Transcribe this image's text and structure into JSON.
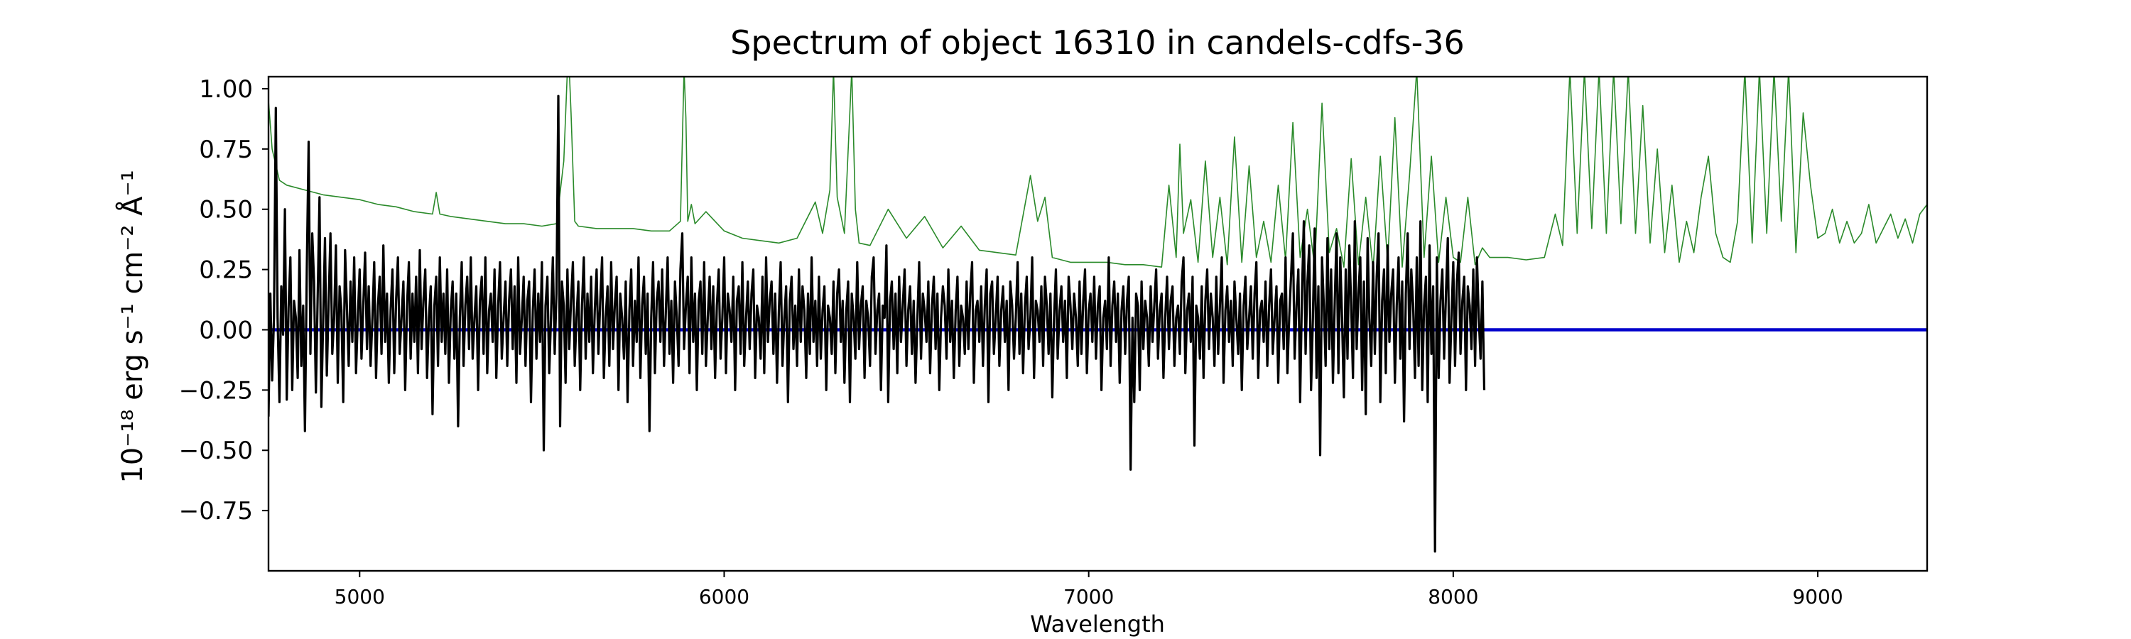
{
  "chart_data": {
    "type": "line",
    "title": "Spectrum of object 16310 in candels-cdfs-36",
    "xlabel": "Wavelength",
    "ylabel": "10⁻¹⁸ erg s⁻¹ cm⁻² Å⁻¹",
    "xlim": [
      4750,
      9300
    ],
    "ylim": [
      -1.0,
      1.05
    ],
    "x_ticks": [
      5000,
      6000,
      7000,
      8000,
      9000
    ],
    "y_ticks": [
      -0.75,
      -0.5,
      -0.25,
      0.0,
      0.25,
      0.5,
      0.75,
      1.0
    ],
    "x_tick_labels": [
      "5000",
      "6000",
      "7000",
      "8000",
      "9000"
    ],
    "y_tick_labels": [
      "−0.75",
      "−0.50",
      "−0.25",
      "0.00",
      "0.25",
      "0.50",
      "0.75",
      "1.00"
    ],
    "grid": false,
    "series": [
      {
        "role": "error",
        "color": "#2a8a2a",
        "x": [
          4750,
          4760,
          4780,
          4800,
          4850,
          4900,
          4950,
          5000,
          5050,
          5100,
          5150,
          5200,
          5210,
          5220,
          5250,
          5300,
          5350,
          5400,
          5450,
          5500,
          5540,
          5560,
          5570,
          5575,
          5580,
          5590,
          5600,
          5650,
          5700,
          5750,
          5800,
          5850,
          5880,
          5890,
          5895,
          5900,
          5910,
          5920,
          5950,
          6000,
          6050,
          6100,
          6150,
          6200,
          6250,
          6270,
          6290,
          6300,
          6310,
          6330,
          6350,
          6360,
          6370,
          6400,
          6450,
          6500,
          6550,
          6600,
          6650,
          6700,
          6750,
          6800,
          6840,
          6860,
          6880,
          6900,
          6950,
          7000,
          7050,
          7100,
          7150,
          7200,
          7220,
          7240,
          7250,
          7260,
          7280,
          7300,
          7320,
          7340,
          7360,
          7380,
          7400,
          7420,
          7440,
          7460,
          7480,
          7500,
          7520,
          7540,
          7560,
          7580,
          7600,
          7620,
          7640,
          7660,
          7680,
          7700,
          7720,
          7740,
          7760,
          7780,
          7800,
          7820,
          7840,
          7860,
          7880,
          7900,
          7920,
          7940,
          7960,
          7980,
          8000,
          8020,
          8040,
          8060,
          8080,
          8100,
          8150,
          8200,
          8250,
          8280,
          8300,
          8320,
          8340,
          8360,
          8380,
          8400,
          8420,
          8440,
          8460,
          8480,
          8500,
          8520,
          8540,
          8560,
          8580,
          8600,
          8620,
          8640,
          8660,
          8680,
          8700,
          8720,
          8740,
          8760,
          8780,
          8800,
          8820,
          8840,
          8860,
          8880,
          8900,
          8920,
          8940,
          8960,
          8980,
          9000,
          9020,
          9040,
          9060,
          9080,
          9100,
          9120,
          9140,
          9160,
          9180,
          9200,
          9220,
          9240,
          9260,
          9280,
          9300
        ],
        "values": [
          0.95,
          0.75,
          0.62,
          0.6,
          0.58,
          0.56,
          0.55,
          0.54,
          0.52,
          0.51,
          0.49,
          0.48,
          0.57,
          0.48,
          0.47,
          0.46,
          0.45,
          0.44,
          0.44,
          0.43,
          0.44,
          0.7,
          1.08,
          1.08,
          0.9,
          0.45,
          0.43,
          0.42,
          0.42,
          0.42,
          0.41,
          0.41,
          0.45,
          1.08,
          0.88,
          0.45,
          0.52,
          0.44,
          0.49,
          0.41,
          0.38,
          0.37,
          0.36,
          0.38,
          0.53,
          0.4,
          0.58,
          1.08,
          0.55,
          0.4,
          1.08,
          0.5,
          0.36,
          0.35,
          0.5,
          0.38,
          0.47,
          0.34,
          0.43,
          0.33,
          0.32,
          0.31,
          0.64,
          0.45,
          0.55,
          0.3,
          0.28,
          0.28,
          0.28,
          0.27,
          0.27,
          0.26,
          0.6,
          0.3,
          0.77,
          0.4,
          0.54,
          0.28,
          0.7,
          0.3,
          0.55,
          0.27,
          0.8,
          0.28,
          0.68,
          0.3,
          0.45,
          0.28,
          0.6,
          0.29,
          0.86,
          0.3,
          0.5,
          0.26,
          0.94,
          0.32,
          0.42,
          0.26,
          0.71,
          0.27,
          0.55,
          0.25,
          0.72,
          0.28,
          0.88,
          0.26,
          0.64,
          1.08,
          0.3,
          0.72,
          0.28,
          0.55,
          0.3,
          0.28,
          0.55,
          0.27,
          0.34,
          0.3,
          0.3,
          0.29,
          0.3,
          0.48,
          0.35,
          1.08,
          0.4,
          1.08,
          0.42,
          1.08,
          0.4,
          1.08,
          0.44,
          1.08,
          0.4,
          0.93,
          0.36,
          0.75,
          0.32,
          0.6,
          0.28,
          0.45,
          0.32,
          0.55,
          0.72,
          0.4,
          0.3,
          0.28,
          0.45,
          1.08,
          0.36,
          1.08,
          0.4,
          1.08,
          0.45,
          1.08,
          0.32,
          0.9,
          0.6,
          0.38,
          0.4,
          0.5,
          0.36,
          0.45,
          0.36,
          0.4,
          0.52,
          0.36,
          0.42,
          0.48,
          0.38,
          0.46,
          0.36,
          0.48,
          0.52
        ]
      },
      {
        "role": "model",
        "color": "#0000cc",
        "x": [
          4750,
          9300
        ],
        "values": [
          0.0,
          0.0
        ]
      },
      {
        "role": "flux",
        "color": "#000000",
        "x_start": 4750,
        "x_step": 5,
        "values": [
          -0.36,
          0.15,
          -0.21,
          0.05,
          0.92,
          0.05,
          -0.3,
          0.18,
          -0.02,
          0.5,
          -0.29,
          0.09,
          0.3,
          -0.25,
          0.12,
          0.05,
          -0.2,
          0.33,
          -0.15,
          0.1,
          -0.42,
          0.25,
          0.78,
          -0.1,
          0.4,
          0.2,
          -0.26,
          0.15,
          0.55,
          -0.32,
          0.05,
          0.38,
          -0.19,
          0.12,
          0.4,
          -0.1,
          0.05,
          0.35,
          -0.22,
          0.18,
          0.08,
          -0.3,
          0.33,
          0.1,
          -0.15,
          0.2,
          -0.05,
          0.3,
          -0.18,
          0.05,
          0.25,
          -0.12,
          0.1,
          0.32,
          -0.08,
          0.18,
          -0.15,
          0.05,
          0.28,
          -0.2,
          0.1,
          0.22,
          -0.1,
          0.35,
          -0.05,
          0.15,
          -0.22,
          0.08,
          0.25,
          -0.18,
          0.12,
          0.3,
          -0.1,
          0.05,
          0.2,
          -0.25,
          0.1,
          0.28,
          -0.12,
          0.15,
          -0.05,
          0.22,
          -0.18,
          0.33,
          -0.08,
          0.12,
          0.25,
          -0.2,
          0.05,
          0.18,
          -0.35,
          0.1,
          0.22,
          -0.15,
          0.3,
          -0.05,
          0.15,
          -0.1,
          0.25,
          -0.22,
          0.08,
          0.2,
          -0.12,
          0.15,
          -0.4,
          0.05,
          0.28,
          -0.15,
          0.1,
          0.22,
          -0.08,
          0.3,
          -0.12,
          0.05,
          0.18,
          -0.25,
          0.12,
          0.22,
          -0.1,
          0.3,
          -0.18,
          0.08,
          0.15,
          -0.05,
          0.25,
          -0.2,
          0.1,
          0.28,
          -0.12,
          0.05,
          0.2,
          -0.15,
          0.12,
          0.25,
          -0.08,
          0.18,
          -0.22,
          0.3,
          -0.1,
          0.05,
          0.22,
          -0.15,
          0.12,
          0.2,
          -0.3,
          0.08,
          0.25,
          -0.12,
          0.15,
          -0.05,
          0.28,
          -0.5,
          0.1,
          0.22,
          -0.18,
          0.05,
          0.3,
          -0.1,
          0.15,
          0.97,
          -0.4,
          0.2,
          0.1,
          -0.22,
          0.25,
          -0.08,
          0.12,
          0.28,
          -0.15,
          0.05,
          0.2,
          -0.25,
          0.1,
          0.3,
          -0.12,
          0.15,
          -0.05,
          0.22,
          -0.18,
          0.08,
          0.25,
          -0.1,
          0.12,
          0.3,
          -0.2,
          0.05,
          0.18,
          -0.15,
          0.28,
          -0.08,
          0.1,
          0.22,
          -0.25,
          0.15,
          0.05,
          -0.12,
          0.2,
          -0.3,
          0.08,
          0.25,
          -0.15,
          0.12,
          -0.05,
          0.3,
          -0.2,
          0.1,
          0.22,
          -0.1,
          0.15,
          -0.42,
          0.05,
          0.28,
          -0.18,
          0.12,
          0.2,
          -0.05,
          0.25,
          -0.15,
          0.08,
          0.3,
          -0.1,
          0.12,
          -0.22,
          0.2,
          0.05,
          -0.15,
          0.25,
          0.4,
          -0.08,
          0.1,
          0.22,
          -0.18,
          0.3,
          -0.05,
          0.15,
          -0.25,
          0.12,
          0.2,
          -0.1,
          0.28,
          -0.15,
          0.05,
          0.22,
          -0.08,
          0.18,
          -0.2,
          0.1,
          0.25,
          -0.12,
          0.05,
          0.3,
          -0.18,
          0.15,
          0.08,
          -0.05,
          0.22,
          -0.25,
          0.12,
          0.18,
          -0.1,
          0.28,
          -0.15,
          0.05,
          0.2,
          -0.08,
          0.15,
          0.25,
          -0.2,
          0.1,
          0.05,
          -0.12,
          0.22,
          -0.18,
          0.3,
          -0.05,
          0.12,
          0.2,
          -0.1,
          0.15,
          -0.22,
          0.08,
          0.28,
          -0.15,
          0.05,
          0.18,
          -0.3,
          0.12,
          0.22,
          -0.08,
          0.1,
          -0.15,
          0.25,
          -0.05,
          0.18,
          0.08,
          -0.2,
          0.15,
          -0.1,
          0.3,
          -0.05,
          0.12,
          -0.15,
          0.22,
          -0.12,
          0.08,
          0.18,
          -0.25,
          0.1,
          0.05,
          -0.1,
          0.2,
          -0.18,
          0.15,
          0.25,
          -0.05,
          0.12,
          -0.22,
          0.08,
          0.2,
          -0.3,
          0.15,
          0.05,
          -0.12,
          0.28,
          -0.08,
          0.1,
          0.18,
          -0.2,
          0.12,
          0.05,
          -0.15,
          0.22,
          0.3,
          -0.1,
          0.08,
          0.15,
          -0.25,
          0.1,
          0.05,
          0.35,
          -0.3,
          0.12,
          0.2,
          -0.08,
          0.15,
          -0.18,
          0.22,
          -0.05,
          0.1,
          0.25,
          -0.15,
          0.08,
          0.18,
          -0.1,
          0.12,
          -0.22,
          0.05,
          0.28,
          -0.12,
          0.15,
          0.08,
          -0.05,
          0.2,
          -0.18,
          0.1,
          0.22,
          -0.08,
          0.15,
          -0.25,
          0.05,
          0.18,
          0.1,
          -0.12,
          0.25,
          -0.05,
          0.12,
          -0.2,
          0.08,
          0.22,
          -0.15,
          0.1,
          0.05,
          -0.1,
          0.2,
          -0.08,
          0.15,
          0.28,
          -0.22,
          0.08,
          0.12,
          -0.05,
          0.18,
          -0.15,
          0.1,
          0.25,
          -0.3,
          0.15,
          0.2,
          -0.1,
          0.05,
          0.22,
          -0.15,
          0.08,
          0.18,
          -0.05,
          0.12,
          -0.25,
          0.2,
          0.1,
          -0.12,
          0.05,
          0.28,
          -0.1,
          0.15,
          -0.18,
          0.1,
          0.22,
          -0.08,
          0.05,
          0.3,
          -0.2,
          0.12,
          0.08,
          -0.05,
          0.18,
          -0.15,
          0.22,
          0.1,
          -0.1,
          0.15,
          -0.28,
          0.05,
          0.25,
          -0.12,
          0.08,
          0.18,
          -0.05,
          0.12,
          -0.2,
          0.22,
          0.1,
          -0.08,
          0.15,
          0.05,
          -0.15,
          0.2,
          -0.1,
          0.12,
          0.25,
          -0.18,
          0.08,
          0.15,
          -0.05,
          0.22,
          -0.12,
          0.1,
          0.18,
          -0.25,
          0.05,
          0.12,
          -0.08,
          0.3,
          -0.15,
          0.1,
          0.2,
          -0.05,
          0.15,
          -0.22,
          0.08,
          0.18,
          -0.1,
          0.12,
          0.22,
          -0.58,
          0.05,
          -0.3,
          0.15,
          0.1,
          -0.25,
          0.2,
          -0.08,
          0.12,
          0.05,
          -0.15,
          0.18,
          -0.05,
          0.1,
          0.25,
          -0.12,
          0.08,
          0.15,
          -0.2,
          0.05,
          0.22,
          -0.08,
          0.12,
          0.18,
          -0.15,
          0.05,
          0.1,
          -0.1,
          0.2,
          0.3,
          -0.18,
          0.08,
          0.15,
          -0.05,
          0.22,
          -0.48,
          0.1,
          0.05,
          -0.12,
          0.18,
          -0.2,
          0.12,
          0.25,
          -0.08,
          0.15,
          0.05,
          -0.15,
          0.22,
          -0.1,
          0.1,
          0.3,
          -0.22,
          0.08,
          0.18,
          -0.05,
          0.12,
          -0.15,
          0.2,
          0.05,
          -0.1,
          0.15,
          -0.25,
          0.1,
          0.22,
          -0.08,
          0.05,
          0.18,
          -0.12,
          0.15,
          0.28,
          -0.2,
          0.08,
          0.12,
          -0.05,
          0.2,
          -0.15,
          0.1,
          0.25,
          -0.1,
          0.05,
          0.18,
          -0.22,
          0.12,
          0.15,
          -0.08,
          0.3,
          -0.18,
          0.05,
          0.22,
          0.4,
          -0.12,
          0.1,
          0.25,
          -0.3,
          0.15,
          0.45,
          -0.1,
          0.2,
          0.35,
          -0.25,
          0.05,
          0.42,
          -0.2,
          0.18,
          -0.52,
          0.3,
          0.1,
          -0.15,
          0.38,
          -0.08,
          0.25,
          -0.22,
          0.12,
          0.4,
          -0.18,
          0.3,
          0.05,
          -0.28,
          0.25,
          -0.12,
          0.35,
          0.1,
          -0.2,
          0.45,
          -0.08,
          0.15,
          0.3,
          -0.25,
          0.2,
          -0.35,
          0.38,
          0.05,
          -0.15,
          0.28,
          -0.1,
          0.22,
          0.4,
          -0.3,
          0.12,
          0.25,
          -0.18,
          0.35,
          -0.05,
          0.15,
          0.25,
          -0.22,
          0.1,
          0.3,
          -0.12,
          0.2,
          -0.38,
          0.15,
          0.4,
          -0.08,
          0.25,
          0.1,
          -0.2,
          0.3,
          -0.15,
          0.45,
          -0.25,
          0.1,
          0.22,
          -0.3,
          0.35,
          -0.1,
          0.18,
          -0.92,
          0.3,
          -0.2,
          0.12,
          0.25,
          -0.12,
          0.15,
          0.38,
          -0.22,
          0.05,
          0.28,
          -0.15,
          0.2,
          0.32,
          -0.1,
          0.12,
          0.22,
          -0.25,
          0.18,
          0.1,
          -0.08,
          0.25,
          -0.15,
          0.3,
          0.05,
          -0.12,
          0.2,
          -0.25
        ]
      }
    ]
  }
}
